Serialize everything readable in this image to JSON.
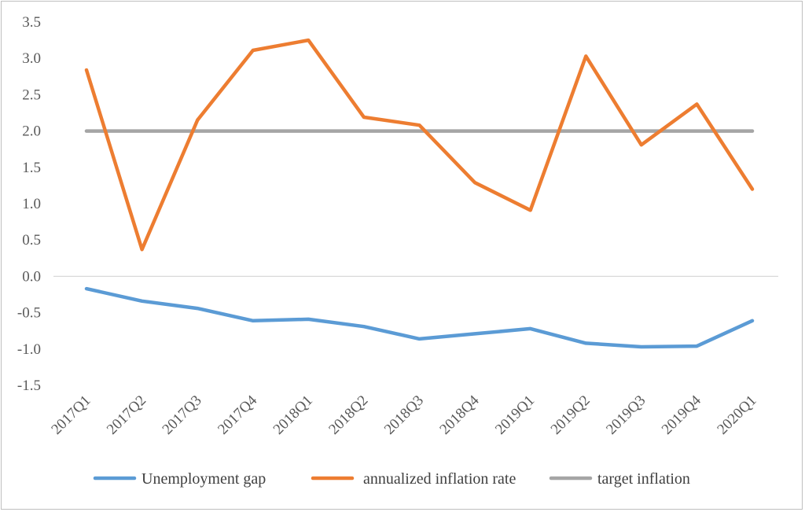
{
  "chart_data": {
    "type": "line",
    "title": "",
    "xlabel": "",
    "ylabel": "",
    "categories": [
      "2017Q1",
      "2017Q2",
      "2017Q3",
      "2017Q4",
      "2018Q1",
      "2018Q2",
      "2018Q3",
      "2018Q4",
      "2019Q1",
      "2019Q2",
      "2019Q3",
      "2019Q4",
      "2020Q1"
    ],
    "yticks": [
      "3.5",
      "3.0",
      "2.5",
      "2.0",
      "1.5",
      "1.0",
      "0.5",
      "0.0",
      "-0.5",
      "-1.0",
      "-1.5"
    ],
    "ylim": [
      -1.5,
      3.5
    ],
    "grid": false,
    "legend_position": "bottom",
    "series": [
      {
        "name": "Unemployment gap",
        "color": "#5b9bd5",
        "values": [
          -0.17,
          -0.34,
          -0.44,
          -0.61,
          -0.59,
          -0.69,
          -0.86,
          -0.79,
          -0.72,
          -0.92,
          -0.97,
          -0.96,
          -0.61
        ]
      },
      {
        "name": "annualized inflation rate",
        "color": "#ed7d31",
        "values": [
          2.84,
          0.37,
          2.15,
          3.11,
          3.25,
          2.19,
          2.08,
          1.29,
          0.91,
          3.03,
          1.81,
          2.37,
          1.2
        ]
      },
      {
        "name": "target inflation",
        "color": "#a5a5a5",
        "values": [
          2.0,
          2.0,
          2.0,
          2.0,
          2.0,
          2.0,
          2.0,
          2.0,
          2.0,
          2.0,
          2.0,
          2.0,
          2.0
        ]
      }
    ]
  }
}
